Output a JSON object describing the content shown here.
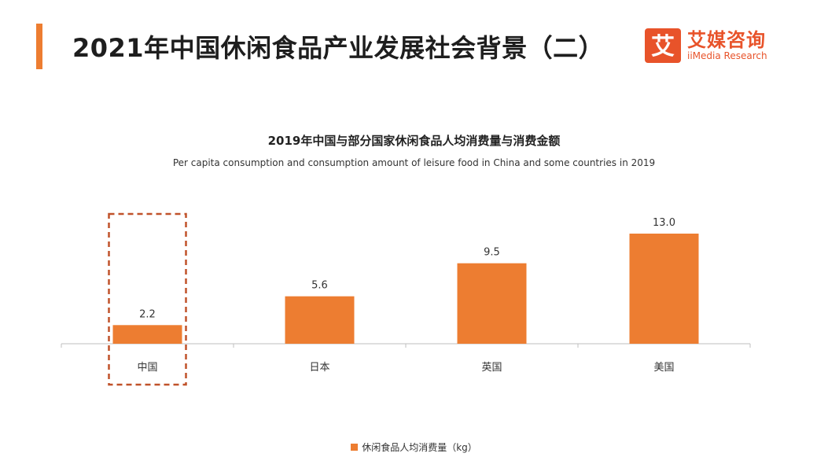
{
  "header": {
    "title": "2021年中国休闲食品产业发展社会背景（二）"
  },
  "logo": {
    "mark_glyph": "艾",
    "name_cn": "艾媒咨询",
    "name_en": "iiMedia Research"
  },
  "colors": {
    "accent": "#ed7d31",
    "bar": "#ed7d31",
    "highlight_border": "#c0522a",
    "logo": "#e8532a"
  },
  "chart_data": {
    "type": "bar",
    "title": "2019年中国与部分国家休闲食品人均消费量与消费金额",
    "subtitle": "Per capita consumption and consumption amount of leisure food in China and some countries in 2019",
    "categories": [
      "中国",
      "日本",
      "英国",
      "美国"
    ],
    "series": [
      {
        "name": "休闲食品人均消费量（kg）",
        "values": [
          2.2,
          5.6,
          9.5,
          13.0
        ]
      }
    ],
    "value_labels": [
      "2.2",
      "5.6",
      "9.5",
      "13.0"
    ],
    "highlight": "中国",
    "legend_position": "bottom",
    "grid": false,
    "ylim": [
      0,
      13.0
    ]
  }
}
